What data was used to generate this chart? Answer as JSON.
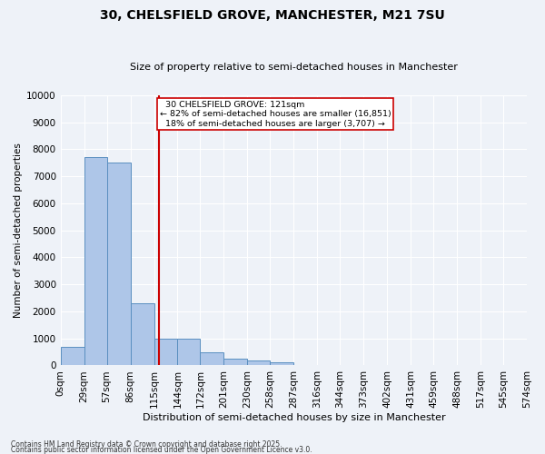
{
  "title": "30, CHELSFIELD GROVE, MANCHESTER, M21 7SU",
  "subtitle": "Size of property relative to semi-detached houses in Manchester",
  "xlabel": "Distribution of semi-detached houses by size in Manchester",
  "ylabel": "Number of semi-detached properties",
  "property_size": 121,
  "property_label": "30 CHELSFIELD GROVE: 121sqm",
  "pct_smaller": 82,
  "count_smaller": 16851,
  "pct_larger": 18,
  "count_larger": 3707,
  "bin_edges": [
    0,
    29,
    57,
    86,
    115,
    144,
    172,
    201,
    230,
    258,
    287,
    316,
    344,
    373,
    402,
    431,
    459,
    488,
    517,
    545,
    574
  ],
  "bar_heights": [
    700,
    7700,
    7500,
    2300,
    1000,
    1000,
    500,
    250,
    200,
    110,
    0,
    0,
    0,
    0,
    0,
    0,
    0,
    0,
    0,
    0
  ],
  "bar_color": "#aec6e8",
  "bar_edge_color": "#5a8fc0",
  "vline_x": 121,
  "vline_color": "#cc0000",
  "annotation_box_color": "#cc0000",
  "ylim": [
    0,
    10000
  ],
  "yticks": [
    0,
    1000,
    2000,
    3000,
    4000,
    5000,
    6000,
    7000,
    8000,
    9000,
    10000
  ],
  "bg_color": "#eef2f8",
  "grid_color": "#ffffff",
  "footer1": "Contains HM Land Registry data © Crown copyright and database right 2025.",
  "footer2": "Contains public sector information licensed under the Open Government Licence v3.0."
}
